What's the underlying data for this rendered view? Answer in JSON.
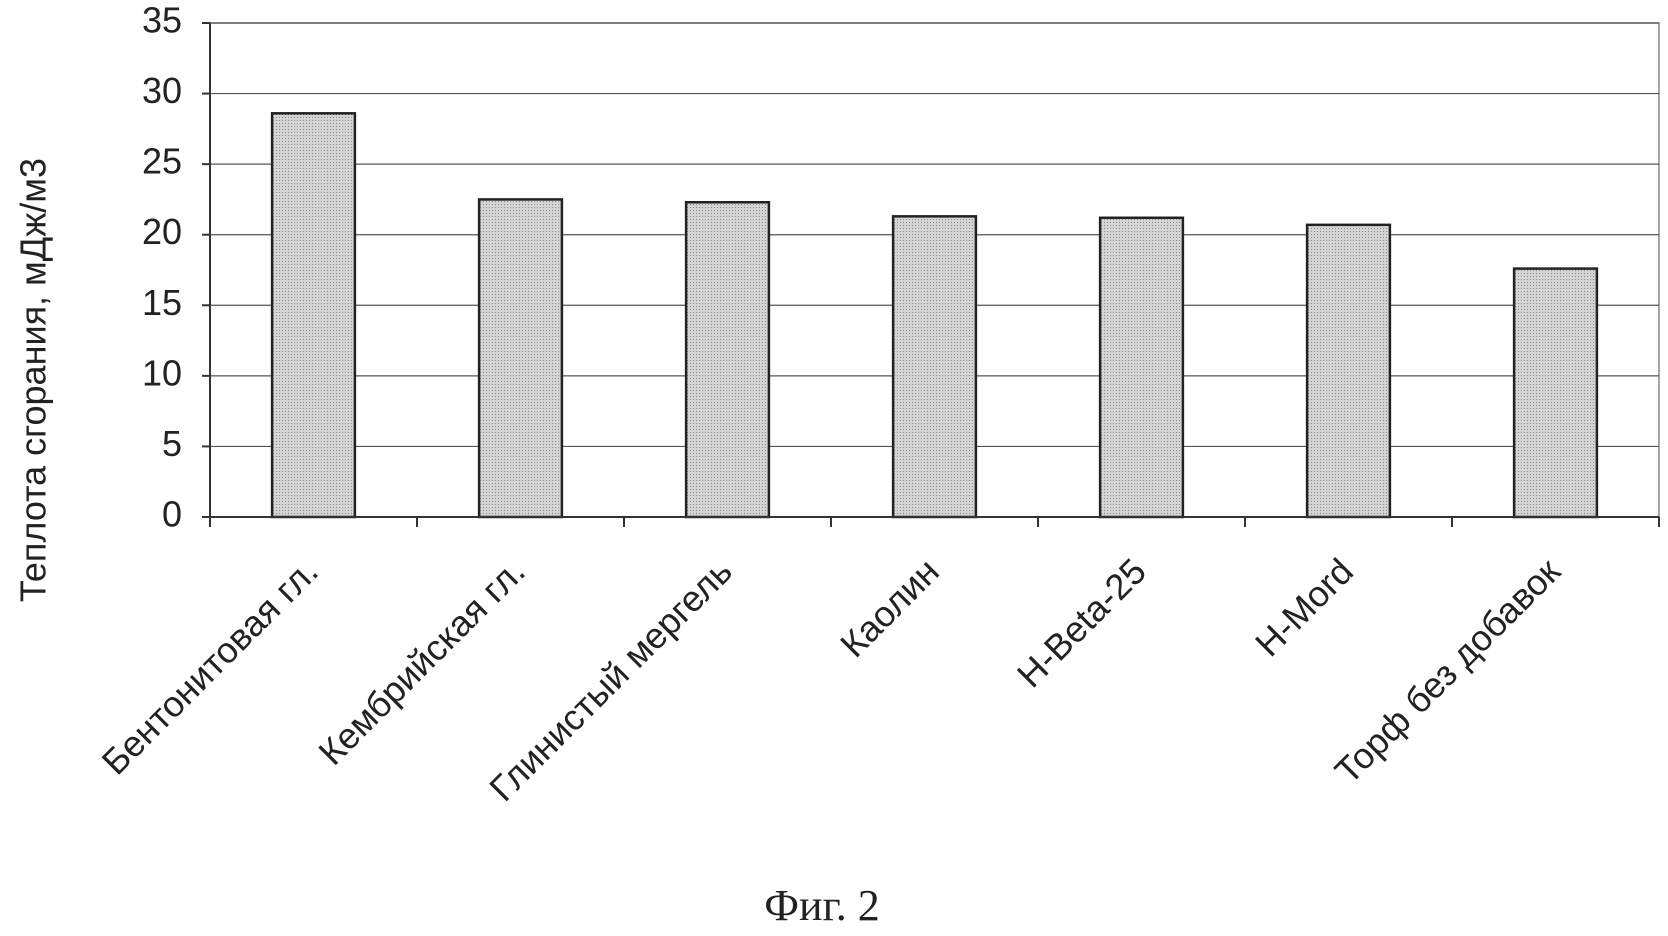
{
  "chart_data": {
    "type": "bar",
    "caption": "Фиг. 2",
    "y_label": "Теплота сгорания, мДж/м3",
    "categories": [
      "Бентонитовая гл.",
      "Кембрийская гл.",
      "Глинистый мергель",
      "Каолин",
      "H-Beta-25",
      "H-Mord",
      "Торф без добавок"
    ],
    "values": [
      28.6,
      22.5,
      22.3,
      21.3,
      21.2,
      20.7,
      17.6
    ],
    "color": "#c8c8c8",
    "ylim": [
      0,
      35
    ],
    "yticks": [
      0,
      5,
      10,
      15,
      20,
      25,
      30,
      35
    ],
    "grid": true
  }
}
